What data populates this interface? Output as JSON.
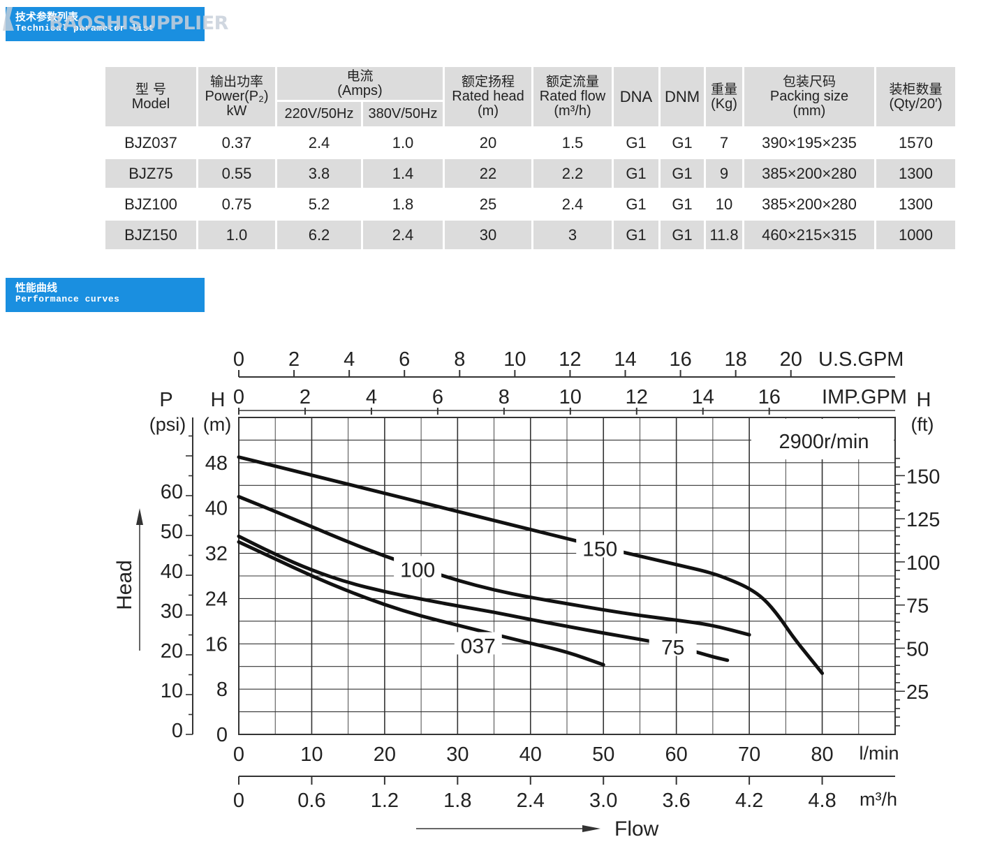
{
  "banner_params": {
    "cn": "技术参数列表",
    "en": "Technical parameter list"
  },
  "watermark": "BAOSHISUPPLIER",
  "table": {
    "headers": {
      "model_cn": "型 号",
      "model_en": "Model",
      "power_cn": "输出功率",
      "power_en": "Power(P₂)",
      "power_unit": "kW",
      "current_cn": "电流",
      "current_en": "(Amps)",
      "v220": "220V/50Hz",
      "v380": "380V/50Hz",
      "head_cn": "额定扬程",
      "head_en": "Rated head",
      "head_unit": "(m)",
      "flow_cn": "额定流量",
      "flow_en": "Rated flow",
      "flow_unit": "(m³/h)",
      "dna": "DNA",
      "dnm": "DNM",
      "weight_cn": "重量",
      "weight_unit": "(Kg)",
      "pack_cn": "包装尺码",
      "pack_en": "Packing size",
      "pack_unit": "(mm)",
      "qty_cn": "装柜数量",
      "qty_en": "(Qty/20′)"
    },
    "rows": [
      {
        "model": "BJZ037",
        "power": "0.37",
        "a220": "2.4",
        "a380": "1.0",
        "head": "20",
        "flow": "1.5",
        "dna": "G1",
        "dnm": "G1",
        "weight": "7",
        "pack": "390×195×235",
        "qty": "1570"
      },
      {
        "model": "BJZ75",
        "power": "0.55",
        "a220": "3.8",
        "a380": "1.4",
        "head": "22",
        "flow": "2.2",
        "dna": "G1",
        "dnm": "G1",
        "weight": "9",
        "pack": "385×200×280",
        "qty": "1300"
      },
      {
        "model": "BJZ100",
        "power": "0.75",
        "a220": "5.2",
        "a380": "1.8",
        "head": "25",
        "flow": "2.4",
        "dna": "G1",
        "dnm": "G1",
        "weight": "10",
        "pack": "385×200×280",
        "qty": "1300"
      },
      {
        "model": "BJZ150",
        "power": "1.0",
        "a220": "6.2",
        "a380": "2.4",
        "head": "30",
        "flow": "3",
        "dna": "G1",
        "dnm": "G1",
        "weight": "11.8",
        "pack": "460×215×315",
        "qty": "1000"
      }
    ]
  },
  "banner_curves": {
    "cn": "性能曲线",
    "en": "Performance curves"
  },
  "chart_data": {
    "type": "line",
    "speed_label": "2900r/min",
    "x_lmin": {
      "ticks": [
        0,
        10,
        20,
        30,
        40,
        50,
        60,
        70,
        80
      ],
      "unit": "l/min",
      "range": [
        0,
        90
      ]
    },
    "x_m3h": {
      "ticks": [
        "0",
        "0.6",
        "1.2",
        "1.8",
        "2.4",
        "3.0",
        "3.6",
        "4.2",
        "4.8"
      ],
      "unit": "m³/h"
    },
    "x_usgpm": {
      "ticks": [
        "0",
        "2",
        "4",
        "6",
        "8",
        "10",
        "12",
        "14",
        "16",
        "18",
        "20"
      ],
      "unit": "U.S.GPM"
    },
    "x_impgpm": {
      "ticks": [
        "0",
        "2",
        "4",
        "6",
        "8",
        "10",
        "12",
        "14",
        "16"
      ],
      "unit": "IMP.GPM"
    },
    "y_m": {
      "label_top": "H",
      "label_unit": "(m)",
      "ticks": [
        0,
        8,
        16,
        24,
        32,
        40,
        48
      ],
      "range": [
        0,
        56
      ]
    },
    "y_psi": {
      "label_top": "P",
      "label_unit": "(psi)",
      "ticks": [
        0,
        10,
        20,
        30,
        40,
        50,
        60
      ]
    },
    "y_ft": {
      "label_top": "H",
      "label_unit": "(ft)",
      "ticks": [
        25,
        50,
        75,
        100,
        125,
        150
      ]
    },
    "ylabel": "Head",
    "xlabel": "Flow",
    "series": [
      {
        "name": "037",
        "x": [
          0,
          5,
          10,
          15,
          20,
          25,
          30,
          35,
          40,
          45,
          50
        ],
        "y": [
          34,
          31,
          28,
          25.3,
          22.9,
          20.9,
          19.3,
          17.7,
          16.1,
          14.6,
          12.3
        ]
      },
      {
        "name": "75",
        "x": [
          0,
          5,
          10,
          15,
          20,
          25,
          30,
          35,
          40,
          45,
          50,
          55,
          60,
          65,
          67
        ],
        "y": [
          35,
          31.8,
          29,
          26.8,
          25.2,
          23.9,
          22.7,
          21.6,
          20.3,
          19.1,
          17.9,
          16.8,
          15.6,
          13.7,
          13.1
        ]
      },
      {
        "name": "100",
        "x": [
          0,
          5,
          10,
          15,
          20,
          25,
          30,
          35,
          40,
          45,
          50,
          55,
          60,
          65,
          70
        ],
        "y": [
          42,
          39.4,
          36.7,
          34,
          31.5,
          29.3,
          27.2,
          25.5,
          24.2,
          23.1,
          22,
          21,
          20.2,
          19.3,
          17.6
        ]
      },
      {
        "name": "150",
        "x": [
          0,
          5,
          10,
          15,
          20,
          25,
          30,
          35,
          40,
          45,
          50,
          55,
          60,
          65,
          68,
          70,
          72,
          74,
          76,
          78,
          80
        ],
        "y": [
          49,
          47.4,
          45.8,
          44.2,
          42.6,
          41,
          39.4,
          37.8,
          36.2,
          34.6,
          33,
          31.5,
          30,
          28.5,
          27,
          25.8,
          24,
          21,
          17.2,
          14,
          10.8
        ]
      }
    ]
  }
}
